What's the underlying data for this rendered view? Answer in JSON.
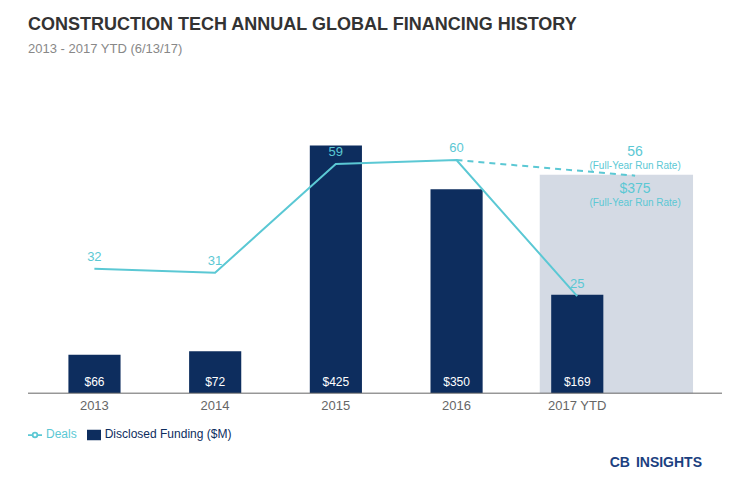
{
  "chart_data": {
    "type": "bar",
    "title": "CONSTRUCTION TECH ANNUAL GLOBAL FINANCING HISTORY",
    "subtitle": "2013 - 2017 YTD (6/13/17)",
    "categories": [
      "2013",
      "2014",
      "2015",
      "2016",
      "2017 YTD"
    ],
    "series": [
      {
        "name": "Disclosed Funding ($M)",
        "type": "bar",
        "color": "#0d2d5e",
        "values": [
          66,
          72,
          425,
          350,
          169
        ],
        "value_labels": [
          "$66",
          "$72",
          "$425",
          "$350",
          "$169"
        ],
        "data_labels": true,
        "run_rate": 375,
        "run_rate_label": "$375"
      },
      {
        "name": "Deals",
        "type": "line",
        "axis": "y2",
        "color": "#5bc8d4",
        "values": [
          32,
          31,
          59,
          60,
          25
        ],
        "data_labels": true,
        "run_rate": 56,
        "run_rate_label": "56"
      }
    ],
    "run_rate_note": "(Full-Year Run Rate)",
    "run_rate_color": "#cdd4df",
    "ylim": [
      0,
      510
    ],
    "y2lim": [
      0,
      76.5
    ],
    "tick_labels": "x",
    "grid": false,
    "legend": "lower left",
    "annotations": [
      {
        "text": "CB",
        "color": "#1b4080"
      },
      {
        "text": "INSIGHTS",
        "color": "#1b4080"
      }
    ]
  }
}
